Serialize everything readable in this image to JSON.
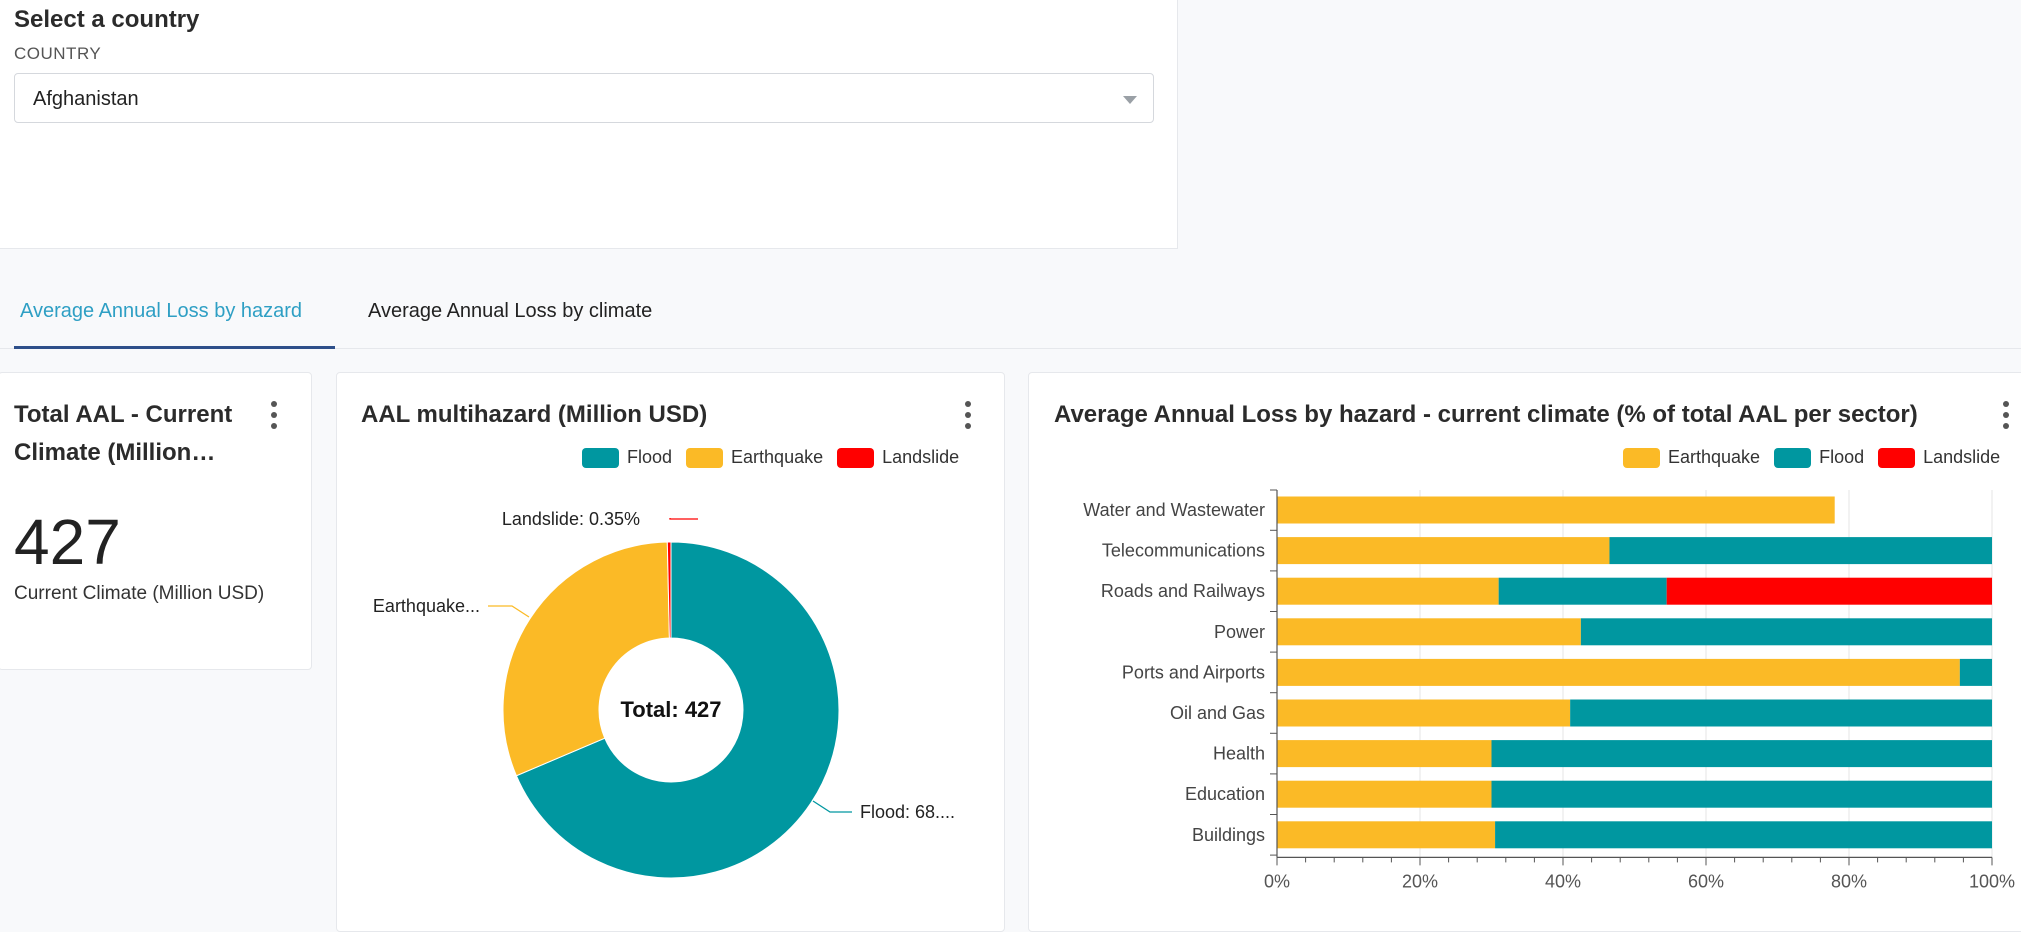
{
  "country_selector": {
    "title": "Select a country",
    "label": "COUNTRY",
    "selected": "Afghanistan"
  },
  "tabs": [
    {
      "label": "Average Annual Loss by hazard",
      "active": true
    },
    {
      "label": "Average Annual Loss by climate",
      "active": false
    }
  ],
  "total_card": {
    "title_line1": "Total AAL - Current",
    "title_line2": "Climate (Million…",
    "value": "427",
    "subtitle": "Current Climate (Million USD)"
  },
  "colors": {
    "flood": "#0097a0",
    "earthquake": "#fbba26",
    "landslide": "#ff0000",
    "accent": "#2e9fc4"
  },
  "donut_card": {
    "title": "AAL multihazard (Million USD)",
    "legend": [
      "Flood",
      "Earthquake",
      "Landslide"
    ],
    "center_label": "Total: 427",
    "slice_labels": {
      "landslide": "Landslide: 0.35%",
      "earthquake": "Earthquake...",
      "flood": "Flood: 68...."
    }
  },
  "bar_card": {
    "title": "Average Annual Loss by hazard - current climate (% of total AAL per sector)",
    "legend": [
      "Earthquake",
      "Flood",
      "Landslide"
    ]
  },
  "chart_data": [
    {
      "type": "pie",
      "title": "AAL multihazard (Million USD)",
      "total": 427,
      "slices": [
        {
          "name": "Flood",
          "percent": 68.6
        },
        {
          "name": "Earthquake",
          "percent": 31.05
        },
        {
          "name": "Landslide",
          "percent": 0.35
        }
      ]
    },
    {
      "type": "bar",
      "orientation": "horizontal",
      "stacked": true,
      "title": "Average Annual Loss by hazard - current climate (% of total AAL per sector)",
      "categories": [
        "Water and Wastewater",
        "Telecommunications",
        "Roads and Railways",
        "Power",
        "Ports and Airports",
        "Oil and Gas",
        "Health",
        "Education",
        "Buildings"
      ],
      "series": [
        {
          "name": "Earthquake",
          "values": [
            78,
            46.5,
            31,
            42.5,
            95.5,
            41,
            30,
            30,
            30.5
          ]
        },
        {
          "name": "Flood",
          "values": [
            0,
            53.5,
            23.5,
            57.5,
            4.5,
            59,
            70,
            70,
            69.5
          ]
        },
        {
          "name": "Landslide",
          "values": [
            0,
            0,
            45.5,
            0,
            0,
            0,
            0,
            0,
            0
          ]
        }
      ],
      "xlim": [
        0,
        100
      ],
      "x_ticks": [
        "0%",
        "20%",
        "40%",
        "60%",
        "80%",
        "100%"
      ],
      "grid": true,
      "legend_position": "top-right"
    }
  ]
}
